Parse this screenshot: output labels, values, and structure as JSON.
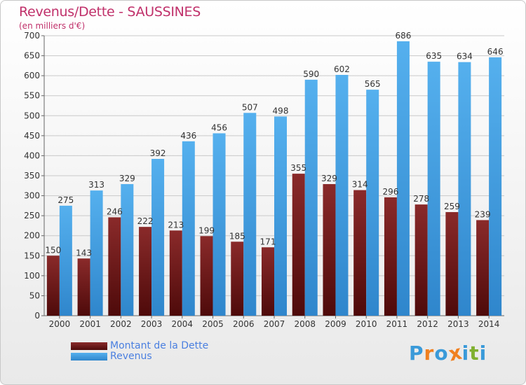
{
  "header": {
    "title": "Revenus/Dette - SAUSSINES",
    "subtitle": "(en milliers d'€)"
  },
  "legend": {
    "debt_label": "Montant de la Dette",
    "revenue_label": "Revenus"
  },
  "logo": {
    "text": "Proxiti",
    "letters": [
      {
        "ch": "P",
        "color": "#3a9ad9"
      },
      {
        "ch": "r",
        "color": "#f08020"
      },
      {
        "ch": "o",
        "color": "#3a9ad9"
      },
      {
        "ch": "x",
        "color": "#f08020"
      },
      {
        "ch": "i",
        "color": "#3a9ad9"
      },
      {
        "ch": "t",
        "color": "#80b030"
      },
      {
        "ch": "i",
        "color": "#3a9ad9"
      }
    ]
  },
  "colors": {
    "debt": "#7a1f1f",
    "revenue": "#4aa3e3",
    "grid": "#c9c9c9",
    "title": "#c0306a"
  },
  "chart_data": {
    "type": "bar",
    "title": "Revenus/Dette - SAUSSINES",
    "subtitle": "(en milliers d'€)",
    "categories": [
      "2000",
      "2001",
      "2002",
      "2003",
      "2004",
      "2005",
      "2006",
      "2007",
      "2008",
      "2009",
      "2010",
      "2011",
      "2012",
      "2013",
      "2014"
    ],
    "series": [
      {
        "name": "Montant de la Dette",
        "values": [
          150,
          143,
          246,
          222,
          213,
          199,
          185,
          171,
          355,
          329,
          314,
          296,
          278,
          259,
          239
        ]
      },
      {
        "name": "Revenus",
        "values": [
          275,
          313,
          329,
          392,
          436,
          456,
          507,
          498,
          590,
          602,
          565,
          686,
          635,
          634,
          646
        ]
      }
    ],
    "ylim": [
      0,
      700
    ],
    "yticks": [
      0,
      50,
      100,
      150,
      200,
      250,
      300,
      350,
      400,
      450,
      500,
      550,
      600,
      650,
      700
    ],
    "grid": true,
    "legend_position": "bottom-left"
  }
}
